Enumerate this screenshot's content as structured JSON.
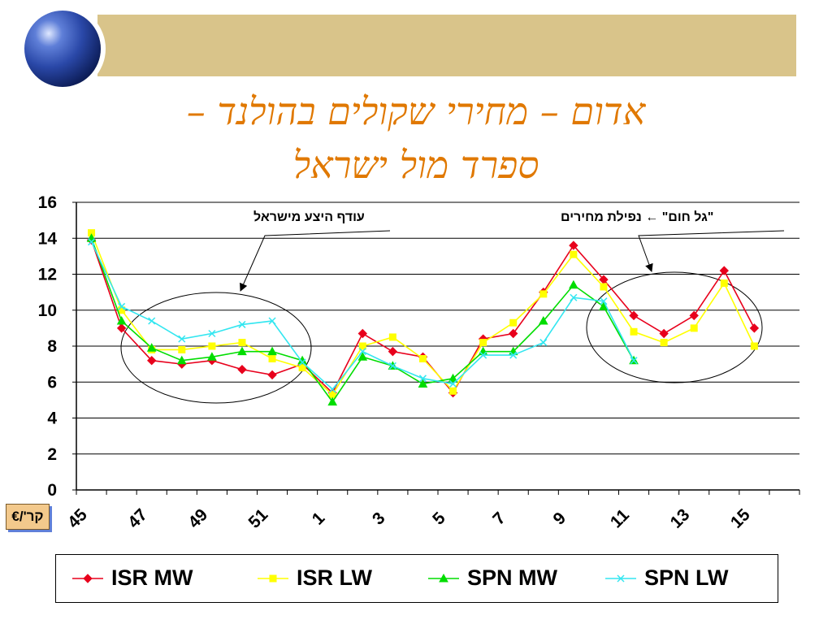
{
  "title_line1": "אדום – מחירי שקולים בהולנד –",
  "title_line2": "ספרד מול ישראל",
  "unit_label": "קר'/€",
  "annotations": {
    "right": "\"גל חום\" ← נפילת מחירים",
    "left": "עודף היצע מישראל"
  },
  "chart_data": {
    "type": "line",
    "title": "",
    "xlabel": "",
    "ylabel": "קר'/€",
    "ylim": [
      0,
      16
    ],
    "yticks": [
      0,
      2,
      4,
      6,
      8,
      10,
      12,
      14,
      16
    ],
    "grid": true,
    "legend_position": "bottom",
    "categories": [
      "45",
      "46",
      "47",
      "48",
      "49",
      "50",
      "51",
      "52",
      "1",
      "2",
      "3",
      "4",
      "5",
      "6",
      "7",
      "8",
      "9",
      "10",
      "11",
      "12",
      "13",
      "14",
      "15",
      "16"
    ],
    "x_tick_labels": [
      "45",
      "47",
      "49",
      "51",
      "1",
      "3",
      "5",
      "7",
      "9",
      "11",
      "13",
      "15"
    ],
    "series": [
      {
        "name": "ISR MW",
        "color": "#e8001c",
        "marker": "diamond",
        "values": [
          13.9,
          9.0,
          7.2,
          7.0,
          7.2,
          6.7,
          6.4,
          7.0,
          5.4,
          8.7,
          7.7,
          7.4,
          5.4,
          8.4,
          8.7,
          11.0,
          13.6,
          11.7,
          9.7,
          8.7,
          9.7,
          12.2,
          9.0,
          null
        ]
      },
      {
        "name": "ISR LW",
        "color": "#ffff00",
        "marker": "square",
        "values": [
          14.3,
          10.0,
          7.8,
          7.8,
          8.0,
          8.2,
          7.3,
          6.8,
          5.3,
          8.0,
          8.5,
          7.3,
          5.5,
          8.2,
          9.3,
          10.9,
          13.1,
          11.3,
          8.8,
          8.2,
          9.0,
          11.5,
          8.0,
          null
        ]
      },
      {
        "name": "SPN MW",
        "color": "#00dd00",
        "marker": "triangle",
        "values": [
          14.0,
          9.4,
          7.9,
          7.2,
          7.4,
          7.7,
          7.7,
          7.2,
          4.9,
          7.4,
          6.9,
          5.9,
          6.2,
          7.7,
          7.7,
          9.4,
          11.4,
          10.2,
          7.2,
          null,
          null,
          null,
          null,
          null
        ]
      },
      {
        "name": "SPN LW",
        "color": "#33e6f0",
        "marker": "x",
        "values": [
          13.8,
          10.2,
          9.4,
          8.4,
          8.7,
          9.2,
          9.4,
          7.1,
          5.6,
          7.7,
          6.9,
          6.2,
          5.9,
          7.5,
          7.5,
          8.2,
          10.7,
          10.5,
          7.2,
          null,
          null,
          null,
          null,
          null
        ]
      }
    ]
  }
}
